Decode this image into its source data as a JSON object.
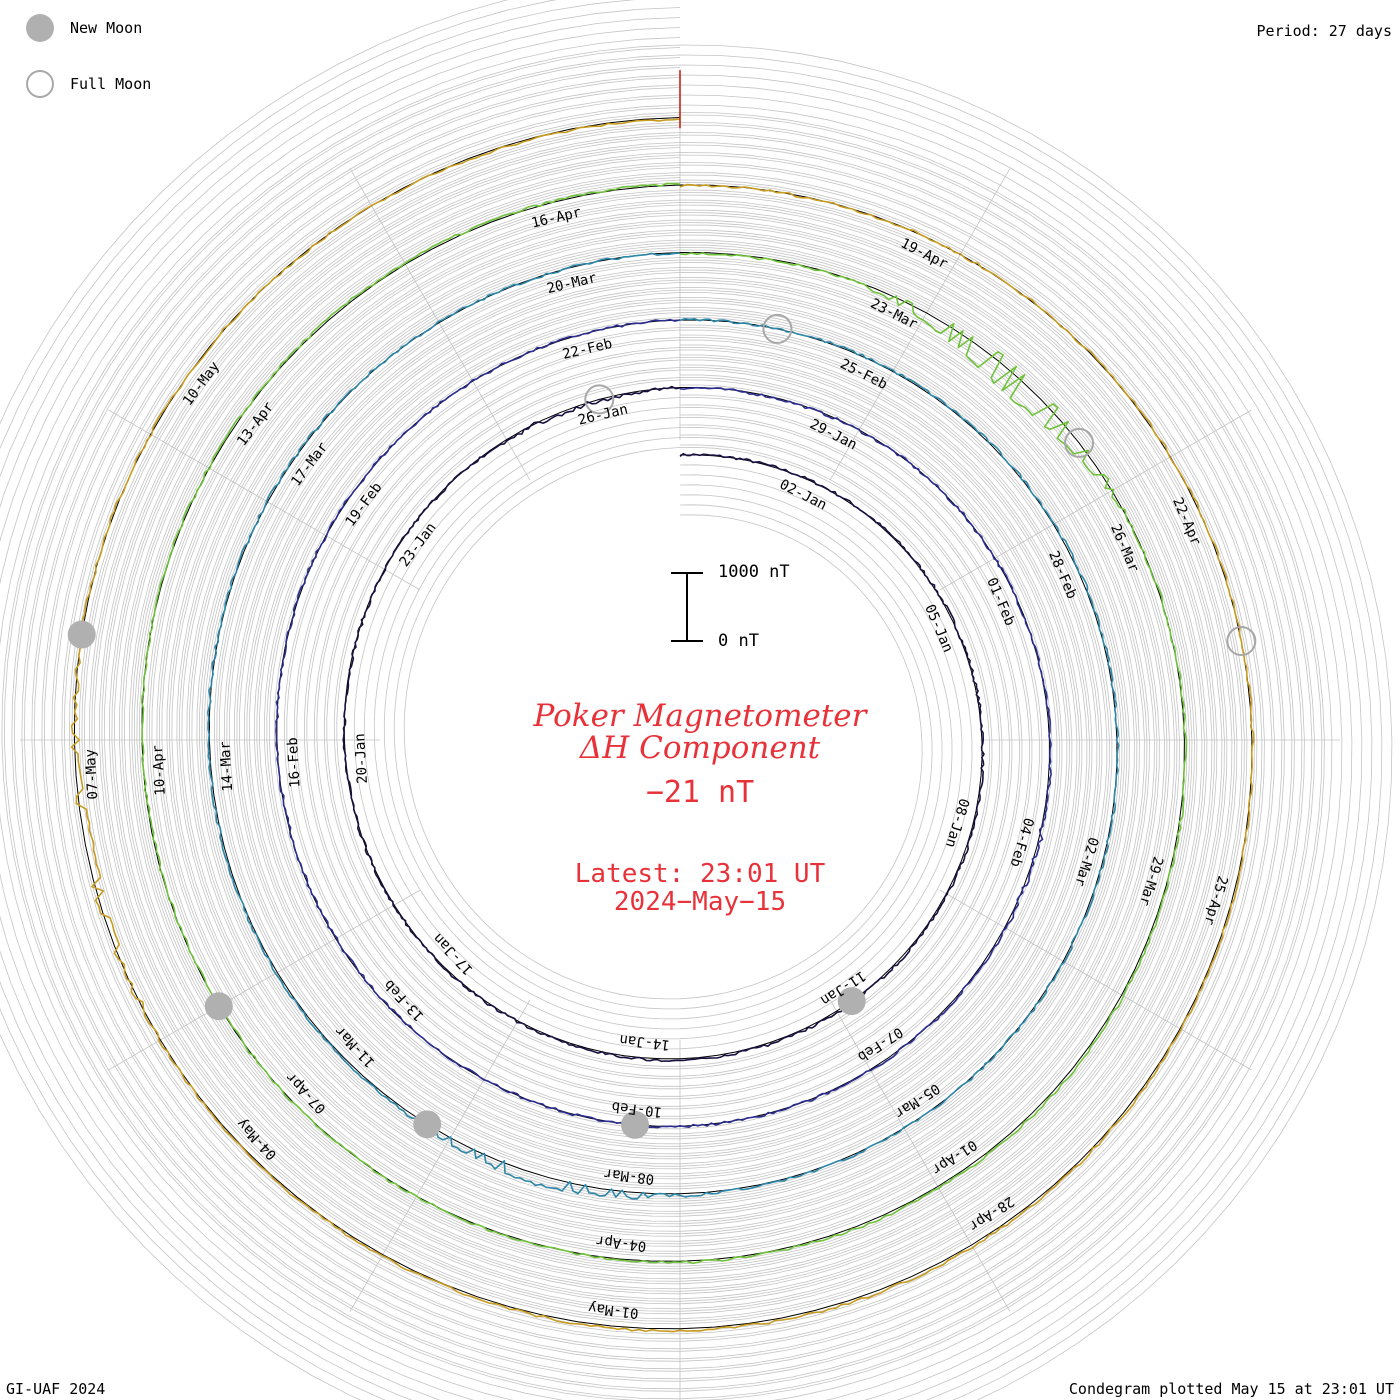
{
  "legend": {
    "new_moon_label": "New Moon",
    "full_moon_label": "Full Moon"
  },
  "period_label": "Period: 27 days",
  "credit": "GI-UAF 2024",
  "plotted_label": "Condegram plotted May 15 at 23:01 UT",
  "scale_bar": {
    "top_label": "1000 nT",
    "bottom_label": "0 nT"
  },
  "center": {
    "title_line1": "Poker Magnetometer",
    "title_line2": "ΔH Component",
    "current_value": "−21 nT",
    "latest_line1": "Latest: 23:01 UT",
    "latest_line2": "2024−May−15"
  },
  "colors": {
    "center_text": "#e8323a",
    "grid": "#c4c4c4",
    "baseline": "#000000",
    "moon_fill": "#b0b0b0",
    "moon_ring": "#a8a8a8"
  },
  "chart_data": {
    "type": "line",
    "projection": "condegram spiral",
    "period_days": 27,
    "units": "nT",
    "scale_nT": [
      0,
      1000
    ],
    "start_date": "2024-01-01",
    "end_date": "2024-05-15",
    "series": [
      {
        "color": "#1a1040",
        "values": [
          0,
          8,
          10,
          12,
          18,
          22,
          14,
          8,
          0,
          -6,
          -4,
          2
        ],
        "spike_at": 0.95,
        "spike": -40
      },
      {
        "color": "#2b2d8f",
        "values": [
          -10,
          -6,
          0,
          8,
          14,
          6,
          0,
          -8,
          -4,
          2,
          0,
          -2
        ],
        "spike_at": 0.3,
        "spike": 30
      },
      {
        "color": "#2d87a8",
        "values": [
          0,
          10,
          16,
          8,
          4,
          12,
          26,
          20,
          10,
          6,
          2,
          -4
        ],
        "spike_at": 0.55,
        "spike": 120
      },
      {
        "color": "#6fc23a",
        "values": [
          -20,
          -10,
          0,
          16,
          30,
          22,
          10,
          0,
          -12,
          4,
          18,
          10
        ],
        "spike_at": 0.12,
        "spike": -300
      },
      {
        "color": "#c89c20",
        "values": [
          -10,
          0,
          10,
          8,
          20,
          35,
          25,
          12,
          0,
          6,
          -10,
          -25
        ],
        "spike_at": 0.72,
        "spike": -110
      },
      {
        "color": "#c02814",
        "values": [
          20,
          30,
          60,
          90,
          140,
          200,
          120,
          80,
          40,
          20,
          10,
          5
        ],
        "spike_at": 0.3,
        "spike": 600
      }
    ],
    "date_labels": [
      {
        "text": "02-Jan",
        "day": 2
      },
      {
        "text": "05-Jan",
        "day": 5
      },
      {
        "text": "08-Jan",
        "day": 8
      },
      {
        "text": "11-Jan",
        "day": 11
      },
      {
        "text": "14-Jan",
        "day": 14
      },
      {
        "text": "17-Jan",
        "day": 17
      },
      {
        "text": "20-Jan",
        "day": 20
      },
      {
        "text": "23-Jan",
        "day": 23
      },
      {
        "text": "26-Jan",
        "day": 26
      },
      {
        "text": "29-Jan",
        "day": 29
      },
      {
        "text": "01-Feb",
        "day": 32
      },
      {
        "text": "04-Feb",
        "day": 35
      },
      {
        "text": "07-Feb",
        "day": 38
      },
      {
        "text": "10-Feb",
        "day": 41
      },
      {
        "text": "13-Feb",
        "day": 44
      },
      {
        "text": "16-Feb",
        "day": 47
      },
      {
        "text": "19-Feb",
        "day": 50
      },
      {
        "text": "22-Feb",
        "day": 53
      },
      {
        "text": "25-Feb",
        "day": 56
      },
      {
        "text": "28-Feb",
        "day": 59
      },
      {
        "text": "02-Mar",
        "day": 62
      },
      {
        "text": "05-Mar",
        "day": 65
      },
      {
        "text": "08-Mar",
        "day": 68
      },
      {
        "text": "11-Mar",
        "day": 71
      },
      {
        "text": "14-Mar",
        "day": 74
      },
      {
        "text": "17-Mar",
        "day": 77
      },
      {
        "text": "20-Mar",
        "day": 80
      },
      {
        "text": "23-Mar",
        "day": 83
      },
      {
        "text": "26-Mar",
        "day": 86
      },
      {
        "text": "29-Mar",
        "day": 89
      },
      {
        "text": "01-Apr",
        "day": 92
      },
      {
        "text": "04-Apr",
        "day": 95
      },
      {
        "text": "07-Apr",
        "day": 98
      },
      {
        "text": "10-Apr",
        "day": 101
      },
      {
        "text": "13-Apr",
        "day": 104
      },
      {
        "text": "16-Apr",
        "day": 107
      },
      {
        "text": "19-Apr",
        "day": 110
      },
      {
        "text": "22-Apr",
        "day": 113
      },
      {
        "text": "25-Apr",
        "day": 116
      },
      {
        "text": "28-Apr",
        "day": 119
      },
      {
        "text": "01-May",
        "day": 122
      },
      {
        "text": "04-May",
        "day": 125
      },
      {
        "text": "07-May",
        "day": 128
      },
      {
        "text": "10-May",
        "day": 131
      }
    ],
    "new_moons_day": [
      11,
      41,
      70,
      99,
      129
    ],
    "full_moons_day": [
      26,
      55,
      85,
      114
    ]
  }
}
